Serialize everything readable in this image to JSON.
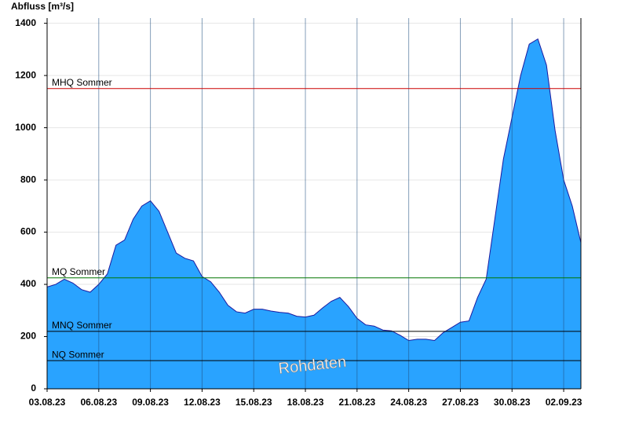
{
  "chart_data": {
    "type": "area",
    "y_label": "Abfluss [m³/s]",
    "x": [
      0,
      0.5,
      1,
      1.5,
      2,
      2.5,
      3,
      3.5,
      4,
      4.5,
      5,
      5.5,
      6,
      6.5,
      7,
      7.5,
      8,
      8.5,
      9,
      9.5,
      10,
      10.5,
      11,
      11.5,
      12,
      12.5,
      13,
      13.5,
      14,
      14.5,
      15,
      15.5,
      16,
      16.5,
      17,
      17.5,
      18,
      18.5,
      19,
      19.5,
      20,
      20.5,
      21,
      21.5,
      22,
      22.5,
      23,
      23.5,
      24,
      24.5,
      25,
      25.5,
      26,
      26.5,
      27,
      27.5,
      28,
      28.5,
      29,
      29.5,
      30,
      30.5,
      31
    ],
    "values": [
      390,
      400,
      420,
      405,
      380,
      370,
      400,
      440,
      550,
      570,
      650,
      700,
      720,
      680,
      600,
      520,
      500,
      490,
      430,
      410,
      370,
      320,
      295,
      290,
      305,
      305,
      298,
      293,
      290,
      278,
      275,
      282,
      310,
      335,
      350,
      315,
      270,
      245,
      240,
      225,
      222,
      205,
      185,
      190,
      190,
      185,
      215,
      235,
      255,
      260,
      350,
      420,
      650,
      880,
      1040,
      1200,
      1320,
      1340,
      1240,
      990,
      800,
      700,
      560
    ],
    "color": "#29a3ff",
    "line_color": "#1a1aa0",
    "xlim": [
      0,
      31
    ],
    "xticks": [
      {
        "value": 0,
        "label": "03.08.23"
      },
      {
        "value": 3,
        "label": "06.08.23"
      },
      {
        "value": 6,
        "label": "09.08.23"
      },
      {
        "value": 9,
        "label": "12.08.23"
      },
      {
        "value": 12,
        "label": "15.08.23"
      },
      {
        "value": 15,
        "label": "18.08.23"
      },
      {
        "value": 18,
        "label": "21.08.23"
      },
      {
        "value": 21,
        "label": "24.08.23"
      },
      {
        "value": 24,
        "label": "27.08.23"
      },
      {
        "value": 27,
        "label": "30.08.23"
      },
      {
        "value": 30,
        "label": "02.09.23"
      }
    ],
    "ylim": [
      0,
      1420
    ],
    "yticks": [
      0,
      200,
      400,
      600,
      800,
      1000,
      1200,
      1400
    ],
    "grid": true,
    "reference_lines": [
      {
        "label": "MHQ Sommer",
        "value": 1150,
        "color": "#cc0000"
      },
      {
        "label": "MQ Sommer",
        "value": 425,
        "color": "#007700"
      },
      {
        "label": "MNQ Sommer",
        "value": 220,
        "color": "#000000"
      },
      {
        "label": "NQ Sommer",
        "value": 108,
        "color": "#000000"
      }
    ],
    "watermark": "Rohdaten"
  }
}
